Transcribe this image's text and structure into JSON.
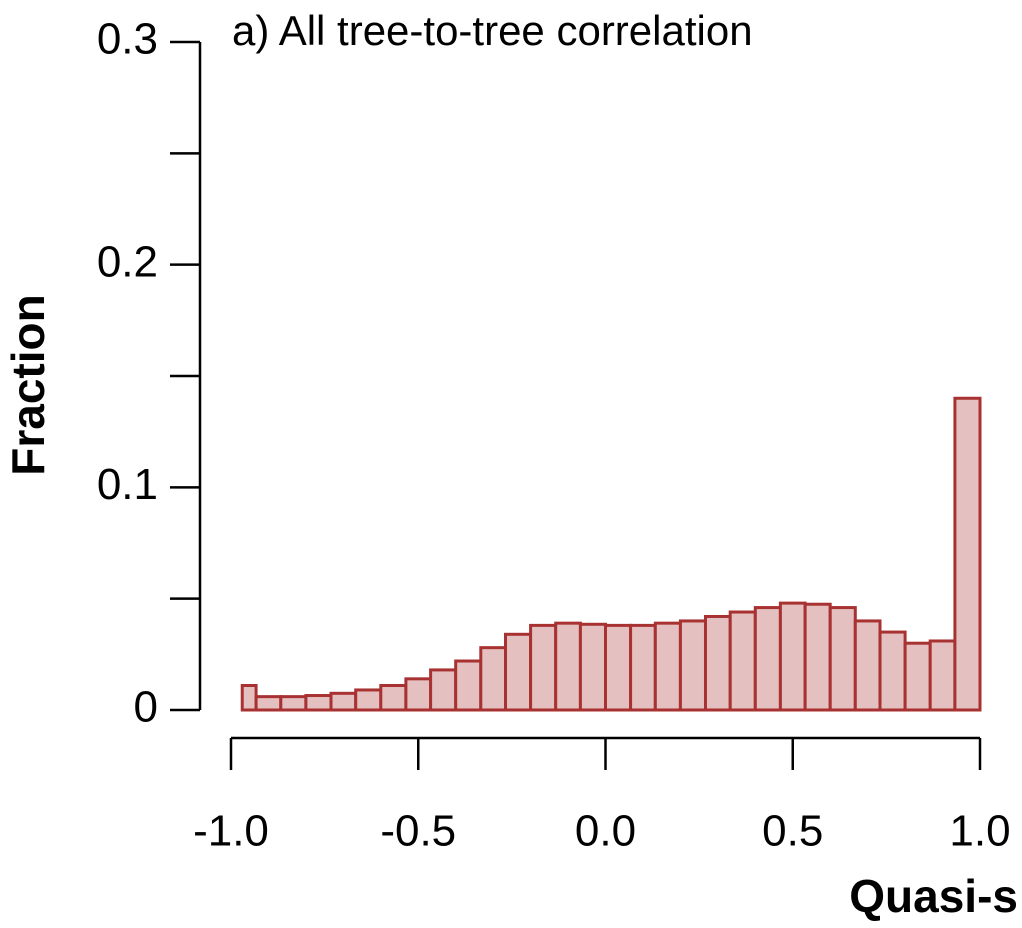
{
  "chart_data": {
    "type": "histogram",
    "title": "a) All tree-to-tree correlation",
    "xlabel": "Quasi-s",
    "ylabel": "Fraction",
    "bins": [
      -0.97,
      -0.933,
      -0.867,
      -0.8,
      -0.733,
      -0.667,
      -0.6,
      -0.533,
      -0.467,
      -0.4,
      -0.333,
      -0.267,
      -0.2,
      -0.133,
      -0.067,
      0,
      0.067,
      0.133,
      0.2,
      0.267,
      0.333,
      0.4,
      0.467,
      0.533,
      0.6,
      0.667,
      0.733,
      0.8,
      0.867,
      0.933,
      1.0
    ],
    "counts": [
      0.011,
      0.006,
      0.006,
      0.0065,
      0.0075,
      0.009,
      0.011,
      0.014,
      0.018,
      0.022,
      0.028,
      0.034,
      0.038,
      0.039,
      0.0385,
      0.038,
      0.038,
      0.039,
      0.04,
      0.042,
      0.044,
      0.046,
      0.048,
      0.0475,
      0.046,
      0.04,
      0.035,
      0.03,
      0.031,
      0.14
    ],
    "color": "#a83232",
    "fill": "#e5c0c0",
    "xlim": [
      -1.0,
      1.0
    ],
    "xticks": [
      {
        "value": -1.0,
        "label": "-1.0"
      },
      {
        "value": -0.5,
        "label": "-0.5"
      },
      {
        "value": 0,
        "label": "0.0"
      },
      {
        "value": 0.5,
        "label": "0.5"
      },
      {
        "value": 1.0,
        "label": "1.0"
      }
    ],
    "ylim": [
      0,
      0.3
    ],
    "yticks": [
      0,
      0.1,
      0.2,
      0.3
    ],
    "yminorticks": [
      0.05,
      0.15,
      0.25
    ],
    "grid": false
  }
}
